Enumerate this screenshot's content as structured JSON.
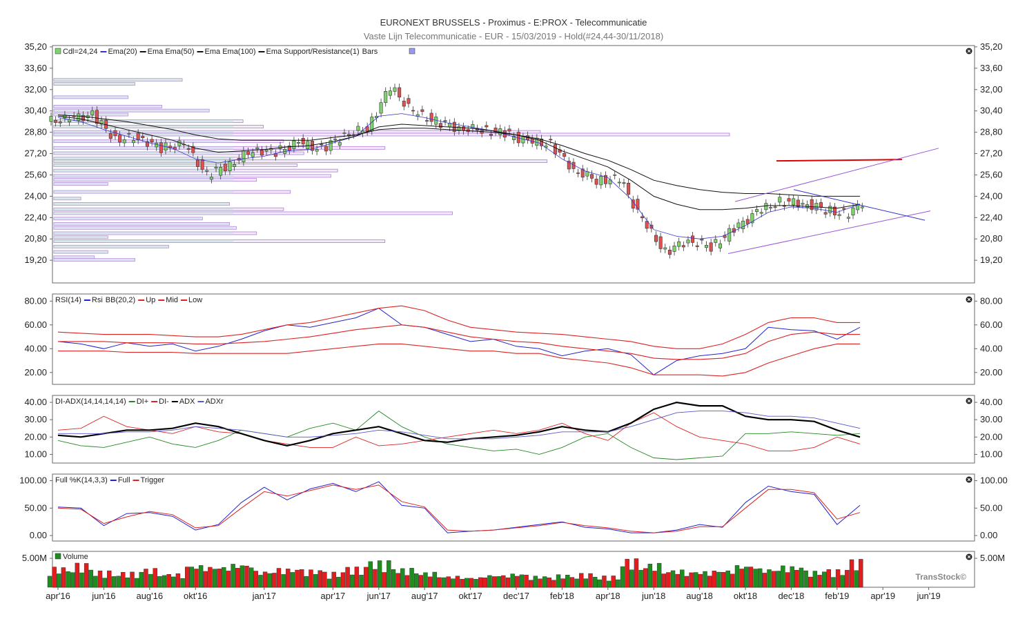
{
  "header": {
    "title": "EURONEXT BRUSSELS - Proximus - E:PROX - Telecommunicatie",
    "subtitle": "Vaste Lijn Telecommunicatie - EUR - 15/03/2019 - Hold(#24,44-30/11/2018)"
  },
  "brand": "TransStock©",
  "x_axis": {
    "labels": [
      "apr'16",
      "jun'16",
      "aug'16",
      "okt'16",
      "jan'17",
      "apr'17",
      "jun'17",
      "aug'17",
      "okt'17",
      "dec'17",
      "feb'18",
      "apr'18",
      "jun'18",
      "aug'18",
      "okt'18",
      "dec'18",
      "feb'19",
      "apr'19",
      "jun'19"
    ],
    "positions_month_index": [
      0,
      2,
      4,
      6,
      9,
      12,
      14,
      16,
      18,
      20,
      22,
      24,
      26,
      28,
      30,
      32,
      34,
      36,
      38
    ]
  },
  "colors": {
    "up_candle": "#7ed36a",
    "down_candle": "#e05050",
    "ema20": "#3333cc",
    "ema50": "#111111",
    "ema100": "#111111",
    "volume_up": "#1e8c1e",
    "volume_down": "#e01e1e",
    "resistance": "#dd0000",
    "channel": "#9955dd",
    "di_plus": "#228822",
    "di_minus": "#dd2222",
    "adx": "#000000",
    "adxr": "#5555cc",
    "rsi": "#2222cc",
    "bb": "#dd2222",
    "stoch_full": "#2222cc",
    "stoch_trigger": "#dd2222"
  },
  "chart_data": [
    {
      "type": "candlestick",
      "panel": "price",
      "legend": [
        {
          "label": "Cdl=24,24"
        },
        {
          "label": "Ema(20)"
        },
        {
          "label": "Ema  Ema(50)"
        },
        {
          "label": "Ema  Ema(100)"
        },
        {
          "label": "Ema  Support/Resistance(1)"
        },
        {
          "label": "Bars"
        }
      ],
      "y_ticks": [
        "35,20",
        "33,60",
        "32,00",
        "30,40",
        "28,80",
        "27,20",
        "25,60",
        "24,00",
        "22,40",
        "20,80",
        "19,20"
      ],
      "y_tick_values": [
        35.2,
        33.6,
        32.0,
        30.4,
        28.8,
        27.2,
        25.6,
        24.0,
        22.4,
        20.8,
        19.2
      ],
      "ylim": [
        17.5,
        35.3
      ],
      "x": [
        0,
        1,
        2,
        3,
        4,
        5,
        6,
        7,
        8,
        9,
        10,
        11,
        12,
        13,
        14,
        15,
        16,
        17,
        18,
        19,
        20,
        21,
        22,
        23,
        24,
        25,
        26,
        27,
        28,
        29,
        30,
        31,
        32,
        33,
        34,
        35
      ],
      "close": [
        29.8,
        30.1,
        28.3,
        28.4,
        27.6,
        27.9,
        25.6,
        26.4,
        27.5,
        27.3,
        28.0,
        27.5,
        28.6,
        29.1,
        32.2,
        30.3,
        29.6,
        29.1,
        29.0,
        28.7,
        28.1,
        27.9,
        26.0,
        25.2,
        25.3,
        22.2,
        19.8,
        20.7,
        20.2,
        21.5,
        22.8,
        23.6,
        23.5,
        23.0,
        22.6,
        24.2
      ],
      "ema20": [
        29.9,
        29.6,
        29.0,
        28.5,
        28.0,
        27.6,
        26.8,
        26.5,
        26.8,
        27.0,
        27.4,
        27.5,
        28.0,
        28.5,
        30.0,
        30.2,
        29.9,
        29.5,
        29.2,
        28.9,
        28.4,
        28.0,
        26.8,
        25.9,
        25.4,
        23.8,
        21.5,
        21.0,
        20.8,
        21.0,
        21.8,
        22.8,
        23.2,
        23.1,
        22.8,
        23.4
      ],
      "ema50": [
        30.0,
        29.8,
        29.4,
        29.0,
        28.6,
        28.2,
        27.6,
        27.3,
        27.4,
        27.5,
        27.7,
        27.8,
        28.1,
        28.5,
        29.2,
        29.4,
        29.3,
        29.2,
        29.1,
        28.9,
        28.6,
        28.2,
        27.4,
        26.8,
        26.2,
        25.2,
        24.0,
        23.4,
        23.0,
        23.0,
        23.1,
        23.3,
        23.3,
        23.2,
        23.1,
        23.4
      ],
      "ema100": [
        30.1,
        30.0,
        29.8,
        29.6,
        29.3,
        29.0,
        28.6,
        28.3,
        28.2,
        28.2,
        28.2,
        28.2,
        28.4,
        28.6,
        29.0,
        29.1,
        29.1,
        29.0,
        28.9,
        28.8,
        28.6,
        28.3,
        27.8,
        27.2,
        26.7,
        26.0,
        25.2,
        24.8,
        24.5,
        24.3,
        24.2,
        24.2,
        24.1,
        24.0,
        24.0,
        24.0
      ],
      "resistance_level": 26.65,
      "volume_profile": [
        {
          "price": 32.7,
          "length": 0.19
        },
        {
          "price": 32.4,
          "length": 0.12
        },
        {
          "price": 31.4,
          "length": 0.11
        },
        {
          "price": 30.7,
          "length": 0.16
        },
        {
          "price": 30.4,
          "length": 0.23
        },
        {
          "price": 30.1,
          "length": 0.11
        },
        {
          "price": 29.6,
          "length": 0.28
        },
        {
          "price": 29.2,
          "length": 0.31
        },
        {
          "price": 28.8,
          "length": 0.72
        },
        {
          "price": 28.6,
          "length": 1.0
        },
        {
          "price": 28.1,
          "length": 0.34
        },
        {
          "price": 27.6,
          "length": 0.49
        },
        {
          "price": 27.2,
          "length": 0.37
        },
        {
          "price": 26.8,
          "length": 0.28
        },
        {
          "price": 26.6,
          "length": 0.73
        },
        {
          "price": 26.3,
          "length": 0.36
        },
        {
          "price": 25.9,
          "length": 0.42
        },
        {
          "price": 25.5,
          "length": 0.41
        },
        {
          "price": 25.2,
          "length": 0.3
        },
        {
          "price": 24.9,
          "length": 0.08
        },
        {
          "price": 24.3,
          "length": 0.35
        },
        {
          "price": 23.8,
          "length": 0.04
        },
        {
          "price": 23.4,
          "length": 0.26
        },
        {
          "price": 23.0,
          "length": 0.34
        },
        {
          "price": 22.7,
          "length": 0.59
        },
        {
          "price": 22.3,
          "length": 0.22
        },
        {
          "price": 21.9,
          "length": 0.26
        },
        {
          "price": 21.6,
          "length": 0.27
        },
        {
          "price": 21.2,
          "length": 0.3
        },
        {
          "price": 20.9,
          "length": 0.08
        },
        {
          "price": 20.6,
          "length": 0.49
        },
        {
          "price": 20.2,
          "length": 0.17
        },
        {
          "price": 19.8,
          "length": 0.08
        },
        {
          "price": 19.4,
          "length": 0.06
        },
        {
          "price": 19.2,
          "length": 0.12
        }
      ]
    },
    {
      "type": "line",
      "panel": "rsi",
      "legend": [
        {
          "label": "RSI(14)"
        },
        {
          "label": "Rsi"
        },
        {
          "label": "BB(20,2)"
        },
        {
          "label": "Up"
        },
        {
          "label": "Mid"
        },
        {
          "label": "Low"
        }
      ],
      "y_ticks": [
        "80.00",
        "60.00",
        "40.00",
        "20.00"
      ],
      "y_tick_values": [
        80,
        60,
        40,
        20
      ],
      "ylim": [
        10,
        86
      ],
      "x": [
        0,
        1,
        2,
        3,
        4,
        5,
        6,
        7,
        8,
        9,
        10,
        11,
        12,
        13,
        14,
        15,
        16,
        17,
        18,
        19,
        20,
        21,
        22,
        23,
        24,
        25,
        26,
        27,
        28,
        29,
        30,
        31,
        32,
        33,
        34,
        35
      ],
      "series": [
        {
          "name": "Rsi",
          "values": [
            46,
            44,
            40,
            45,
            42,
            44,
            38,
            42,
            48,
            55,
            60,
            58,
            62,
            66,
            74,
            60,
            58,
            52,
            46,
            48,
            42,
            40,
            34,
            38,
            40,
            35,
            18,
            30,
            34,
            36,
            40,
            58,
            56,
            55,
            48,
            58
          ]
        },
        {
          "name": "Up",
          "values": [
            54,
            53,
            52,
            52,
            52,
            51,
            50,
            50,
            52,
            56,
            60,
            62,
            66,
            70,
            74,
            76,
            72,
            64,
            58,
            56,
            54,
            53,
            52,
            50,
            48,
            46,
            42,
            40,
            40,
            44,
            52,
            62,
            66,
            66,
            62,
            62
          ]
        },
        {
          "name": "Mid",
          "values": [
            46,
            46,
            46,
            45,
            45,
            45,
            44,
            44,
            45,
            46,
            48,
            50,
            53,
            56,
            58,
            60,
            58,
            54,
            50,
            48,
            46,
            45,
            42,
            40,
            38,
            36,
            32,
            31,
            31,
            32,
            36,
            46,
            52,
            54,
            52,
            52
          ]
        },
        {
          "name": "Low",
          "values": [
            38,
            38,
            38,
            37,
            37,
            37,
            36,
            36,
            36,
            36,
            36,
            38,
            40,
            42,
            44,
            44,
            42,
            40,
            38,
            38,
            36,
            36,
            32,
            30,
            28,
            24,
            18,
            18,
            18,
            17,
            20,
            28,
            34,
            40,
            44,
            44
          ]
        }
      ]
    },
    {
      "type": "line",
      "panel": "adx",
      "legend": [
        {
          "label": "DI-ADX(14,14,14,14)"
        },
        {
          "label": "DI+"
        },
        {
          "label": "DI-"
        },
        {
          "label": "ADX"
        },
        {
          "label": "ADXr"
        }
      ],
      "y_ticks": [
        "40.00",
        "30.00",
        "20.00",
        "10.00"
      ],
      "y_tick_values": [
        40,
        30,
        20,
        10
      ],
      "ylim": [
        5,
        44
      ],
      "x": [
        0,
        1,
        2,
        3,
        4,
        5,
        6,
        7,
        8,
        9,
        10,
        11,
        12,
        13,
        14,
        15,
        16,
        17,
        18,
        19,
        20,
        21,
        22,
        23,
        24,
        25,
        26,
        27,
        28,
        29,
        30,
        31,
        32,
        33,
        34,
        35
      ],
      "series": [
        {
          "name": "DI+",
          "values": [
            18,
            15,
            14,
            17,
            20,
            16,
            14,
            18,
            24,
            22,
            20,
            25,
            28,
            24,
            35,
            26,
            20,
            16,
            14,
            12,
            13,
            10,
            14,
            20,
            22,
            14,
            8,
            7,
            8,
            9,
            22,
            22,
            23,
            22,
            21,
            22
          ]
        },
        {
          "name": "DI-",
          "values": [
            24,
            25,
            32,
            26,
            24,
            22,
            26,
            23,
            22,
            18,
            16,
            14,
            14,
            20,
            15,
            16,
            18,
            20,
            22,
            24,
            22,
            24,
            28,
            22,
            18,
            28,
            34,
            26,
            20,
            18,
            16,
            12,
            12,
            14,
            20,
            16
          ]
        },
        {
          "name": "ADX",
          "values": [
            21,
            20,
            22,
            24,
            24,
            25,
            28,
            26,
            22,
            18,
            15,
            18,
            22,
            24,
            26,
            22,
            18,
            17,
            19,
            20,
            21,
            23,
            26,
            24,
            23,
            28,
            36,
            40,
            38,
            38,
            32,
            30,
            30,
            29,
            24,
            20
          ]
        },
        {
          "name": "ADXr",
          "values": [
            22,
            22,
            22,
            23,
            23,
            24,
            26,
            25,
            24,
            22,
            20,
            20,
            21,
            22,
            24,
            23,
            21,
            19,
            19,
            19,
            20,
            21,
            23,
            23,
            23,
            26,
            30,
            34,
            35,
            35,
            34,
            32,
            32,
            31,
            28,
            25
          ]
        }
      ]
    },
    {
      "type": "line",
      "panel": "stochastic",
      "legend": [
        {
          "label": "Full %K(14,3,3)"
        },
        {
          "label": "Full"
        },
        {
          "label": "Trigger"
        }
      ],
      "y_ticks": [
        "100.00",
        "50.00",
        "0.00"
      ],
      "y_tick_values": [
        100,
        50,
        0
      ],
      "ylim": [
        -10,
        112
      ],
      "x": [
        0,
        1,
        2,
        3,
        4,
        5,
        6,
        7,
        8,
        9,
        10,
        11,
        12,
        13,
        14,
        15,
        16,
        17,
        18,
        19,
        20,
        21,
        22,
        23,
        24,
        25,
        26,
        27,
        28,
        29,
        30,
        31,
        32,
        33,
        34,
        35
      ],
      "series": [
        {
          "name": "Full",
          "values": [
            52,
            50,
            18,
            40,
            42,
            35,
            10,
            20,
            60,
            88,
            65,
            85,
            95,
            80,
            98,
            55,
            50,
            5,
            8,
            10,
            15,
            20,
            25,
            15,
            12,
            5,
            5,
            10,
            20,
            15,
            60,
            90,
            80,
            75,
            20,
            55
          ]
        },
        {
          "name": "Trigger",
          "values": [
            50,
            48,
            22,
            34,
            44,
            38,
            14,
            18,
            50,
            80,
            72,
            82,
            92,
            84,
            92,
            62,
            52,
            10,
            8,
            10,
            14,
            18,
            24,
            18,
            14,
            8,
            5,
            8,
            16,
            16,
            50,
            84,
            84,
            78,
            30,
            42
          ]
        }
      ]
    },
    {
      "type": "bar",
      "panel": "volume",
      "legend": [
        {
          "label": "Volume"
        }
      ],
      "y_ticks": [
        "5.00M"
      ],
      "y_tick_values": [
        5.0
      ],
      "ylim": [
        0,
        6.2
      ],
      "x": [
        0,
        1,
        2,
        3,
        4,
        5,
        6,
        7,
        8,
        9,
        10,
        11,
        12,
        13,
        14,
        15,
        16,
        17,
        18,
        19,
        20,
        21,
        22,
        23,
        24,
        25,
        26,
        27,
        28,
        29,
        30,
        31,
        32,
        33,
        34,
        35
      ],
      "values": [
        3.2,
        3.8,
        2.6,
        2.4,
        3.0,
        2.2,
        3.6,
        3.4,
        3.8,
        2.6,
        3.0,
        2.8,
        2.4,
        3.2,
        4.2,
        3.0,
        2.4,
        1.8,
        1.6,
        2.0,
        2.2,
        1.8,
        2.0,
        2.2,
        1.8,
        4.5,
        3.8,
        2.8,
        2.6,
        2.8,
        3.6,
        3.0,
        3.4,
        2.6,
        2.8,
        4.4
      ],
      "up": [
        1,
        0,
        1,
        0,
        1,
        0,
        0,
        1,
        1,
        1,
        0,
        1,
        0,
        1,
        1,
        0,
        1,
        1,
        0,
        1,
        0,
        1,
        0,
        0,
        1,
        0,
        0,
        1,
        0,
        1,
        1,
        0,
        1,
        0,
        0,
        1
      ]
    }
  ]
}
